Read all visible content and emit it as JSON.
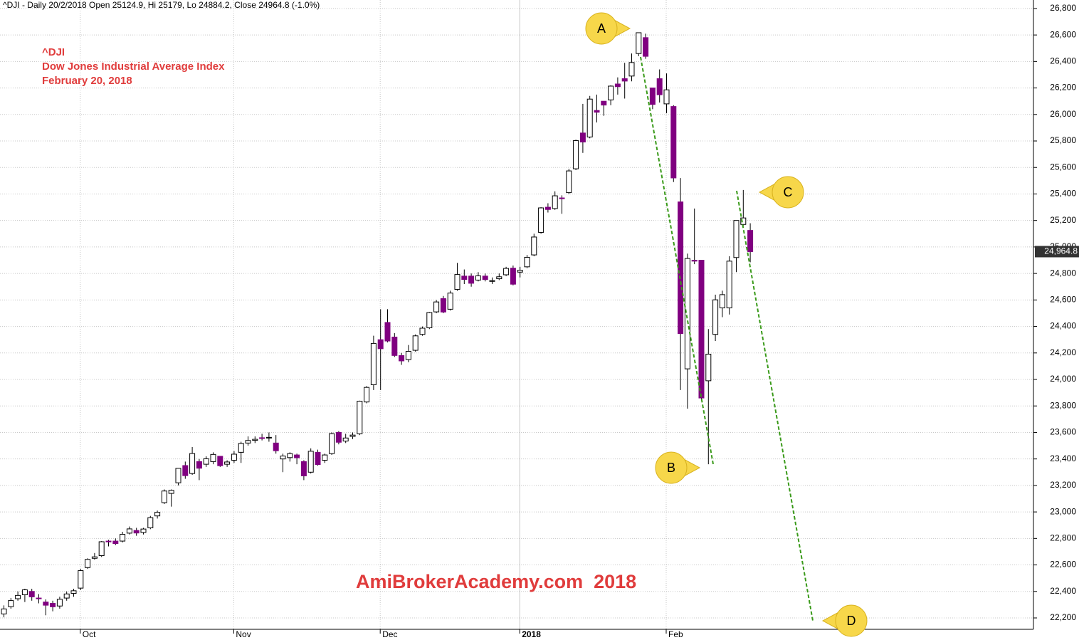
{
  "chart_data": {
    "type": "candlestick",
    "title": "^DJI - Daily 20/2/2018 Open 25124.9, Hi 25179, Lo 24884.2, Close 24964.8 (-1.0%)",
    "text_lines": [
      "^DJI",
      "Dow Jones Industrial Average Index",
      "February 20, 2018"
    ],
    "watermark": "AmiBrokerAcademy.com  2018",
    "annotations": [
      "A",
      "B",
      "C",
      "D"
    ],
    "up_color": "#ffffff",
    "down_color": "#800080",
    "trend_color": "#3a9a1a",
    "grid": true,
    "ylim": [
      22114,
      26864
    ],
    "yticks": [
      {
        "value": 22200,
        "label": "22,200"
      },
      {
        "value": 22400,
        "label": "22,400"
      },
      {
        "value": 22600,
        "label": "22,600"
      },
      {
        "value": 22800,
        "label": "22,800"
      },
      {
        "value": 23000,
        "label": "23,000"
      },
      {
        "value": 23200,
        "label": "23,200"
      },
      {
        "value": 23400,
        "label": "23,400"
      },
      {
        "value": 23600,
        "label": "23,600"
      },
      {
        "value": 23800,
        "label": "23,800"
      },
      {
        "value": 24000,
        "label": "24,000"
      },
      {
        "value": 24200,
        "label": "24,200"
      },
      {
        "value": 24400,
        "label": "24,400"
      },
      {
        "value": 24600,
        "label": "24,600"
      },
      {
        "value": 24800,
        "label": "24,800"
      },
      {
        "value": 25000,
        "label": "25,000"
      },
      {
        "value": 25200,
        "label": "25,200"
      },
      {
        "value": 25400,
        "label": "25,400"
      },
      {
        "value": 25600,
        "label": "25,600"
      },
      {
        "value": 25800,
        "label": "25,800"
      },
      {
        "value": 26000,
        "label": "26,000"
      },
      {
        "value": 26200,
        "label": "26,200"
      },
      {
        "value": 26400,
        "label": "26,400"
      },
      {
        "value": 26600,
        "label": "26,600"
      },
      {
        "value": 26800,
        "label": "26,800"
      }
    ],
    "last_value_label": {
      "value": 24964.8,
      "label": "24,964.8"
    },
    "categories": [
      null,
      null,
      null,
      null,
      null,
      null,
      null,
      null,
      null,
      null,
      null,
      "Oct",
      null,
      null,
      null,
      null,
      null,
      null,
      null,
      null,
      null,
      null,
      null,
      null,
      null,
      null,
      null,
      null,
      null,
      null,
      null,
      null,
      null,
      "Nov",
      null,
      null,
      null,
      null,
      null,
      null,
      null,
      null,
      null,
      null,
      null,
      null,
      null,
      null,
      null,
      null,
      null,
      null,
      null,
      null,
      "Dec",
      null,
      null,
      null,
      null,
      null,
      null,
      null,
      null,
      null,
      null,
      null,
      null,
      null,
      null,
      null,
      null,
      null,
      null,
      null,
      "2018",
      null,
      null,
      null,
      null,
      null,
      null,
      null,
      null,
      null,
      null,
      null,
      null,
      null,
      null,
      null,
      null,
      null,
      null,
      null,
      null,
      "Feb",
      null,
      null,
      null,
      null,
      null,
      null,
      null,
      null,
      null,
      null,
      null,
      null
    ],
    "open": [
      22230,
      22285,
      22345,
      22375,
      22400,
      22350,
      22320,
      22310,
      22290,
      22350,
      22385,
      22425,
      22580,
      22650,
      22670,
      22780,
      22780,
      22780,
      22840,
      22860,
      22845,
      22880,
      22970,
      23070,
      23140,
      23220,
      23350,
      23290,
      23380,
      23360,
      23380,
      23420,
      23360,
      23390,
      23450,
      23520,
      23540,
      23560,
      23560,
      23520,
      23400,
      23410,
      23430,
      23380,
      23300,
      23450,
      23390,
      23440,
      23600,
      23535,
      23570,
      23590,
      23830,
      23960,
      24300,
      24430,
      24320,
      24180,
      24150,
      24220,
      24340,
      24390,
      24510,
      24610,
      24530,
      24680,
      24780,
      24780,
      24750,
      24780,
      24740,
      24760,
      24790,
      24840,
      24810,
      24850,
      24940,
      25110,
      25300,
      25290,
      25370,
      25410,
      25590,
      25860,
      25830,
      26030,
      26100,
      26110,
      26230,
      26270,
      26290,
      26460,
      26580,
      26200,
      26270,
      26080,
      26060,
      25340,
      24080,
      24900,
      24900,
      23990,
      24340,
      24540,
      24540,
      24920,
      25170,
      25124.9
    ],
    "high": [
      22295,
      22350,
      22400,
      22420,
      22420,
      22380,
      22340,
      22330,
      22360,
      22400,
      22420,
      22570,
      22650,
      22690,
      22780,
      22790,
      22800,
      22850,
      22890,
      22880,
      22880,
      22970,
      23010,
      23170,
      23170,
      23330,
      23380,
      23490,
      23400,
      23420,
      23450,
      23420,
      23390,
      23460,
      23530,
      23570,
      23570,
      23590,
      23600,
      23580,
      23440,
      23450,
      23440,
      23390,
      23480,
      23470,
      23440,
      23600,
      23610,
      23590,
      23600,
      23840,
      23950,
      24330,
      24530,
      24530,
      24350,
      24200,
      24260,
      24340,
      24400,
      24510,
      24600,
      24630,
      24670,
      24880,
      24830,
      24800,
      24810,
      24800,
      24770,
      24800,
      24850,
      24860,
      24850,
      24940,
      25100,
      25300,
      25330,
      25420,
      25390,
      25590,
      25810,
      26080,
      26140,
      26150,
      26100,
      26220,
      26280,
      26390,
      26460,
      26617,
      26610,
      26200,
      26340,
      26310,
      26070,
      25520,
      24950,
      25290,
      24900,
      24380,
      24640,
      24670,
      24930,
      25200,
      25430,
      25179
    ],
    "low": [
      22205,
      22270,
      22330,
      22320,
      22330,
      22310,
      22220,
      22250,
      22270,
      22330,
      22360,
      22410,
      22570,
      22640,
      22660,
      22740,
      22750,
      22770,
      22830,
      22820,
      22830,
      22870,
      22950,
      23060,
      23040,
      23200,
      23250,
      23280,
      23240,
      23340,
      23360,
      23340,
      23340,
      23370,
      23370,
      23500,
      23520,
      23540,
      23530,
      23440,
      23300,
      23380,
      23360,
      23240,
      23290,
      23350,
      23370,
      23430,
      23510,
      23520,
      23550,
      23580,
      23820,
      23920,
      23920,
      24280,
      24170,
      24110,
      24130,
      24210,
      24330,
      24380,
      24500,
      24500,
      24520,
      24670,
      24720,
      24700,
      24740,
      24740,
      24720,
      24750,
      24780,
      24710,
      24770,
      24840,
      24930,
      25100,
      25260,
      25280,
      25250,
      25400,
      25580,
      25710,
      25820,
      25940,
      25990,
      26070,
      26150,
      26120,
      26250,
      26440,
      26420,
      26040,
      26090,
      26010,
      25490,
      23920,
      23780,
      24870,
      23850,
      23360,
      24290,
      24470,
      24490,
      24810,
      25160,
      24884.2
    ],
    "close": [
      22268,
      22331,
      22370,
      22412,
      22359,
      22349,
      22296,
      22284,
      22341,
      22381,
      22405,
      22557,
      22642,
      22661,
      22775,
      22774,
      22761,
      22831,
      22872,
      22841,
      22871,
      22957,
      22997,
      23158,
      23163,
      23329,
      23274,
      23441,
      23330,
      23401,
      23434,
      23349,
      23377,
      23436,
      23517,
      23539,
      23548,
      23557,
      23563,
      23462,
      23422,
      23440,
      23409,
      23272,
      23458,
      23358,
      23430,
      23591,
      23526,
      23558,
      23580,
      23836,
      23940,
      24272,
      24232,
      24290,
      24181,
      24140,
      24212,
      24329,
      24387,
      24505,
      24585,
      24509,
      24652,
      24792,
      24755,
      24726,
      24782,
      24754,
      24746,
      24775,
      24838,
      24719,
      24824,
      24922,
      25075,
      25295,
      25283,
      25386,
      25369,
      25574,
      25803,
      25792,
      26116,
      26017,
      26071,
      26214,
      26210,
      26252,
      26392,
      26617,
      26439,
      26076,
      26149,
      26186,
      25521,
      24346,
      24913,
      24893,
      23860,
      24191,
      24601,
      24640,
      24893,
      25200,
      25219,
      24964.8
    ]
  }
}
